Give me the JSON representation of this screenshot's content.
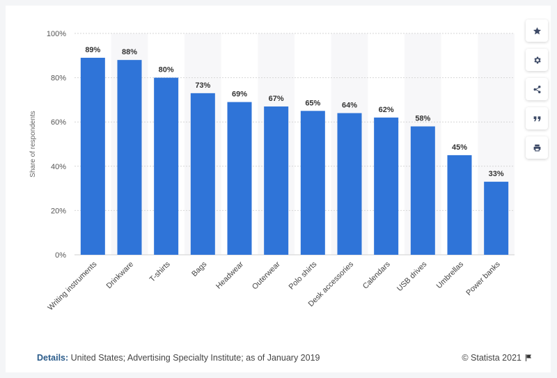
{
  "chart_data": {
    "type": "bar",
    "categories": [
      "Writing instruments",
      "Drinkware",
      "T-shirts",
      "Bags",
      "Headwear",
      "Outerwear",
      "Polo shirts",
      "Desk accessories",
      "Calendars",
      "USB drives",
      "Umbrellas",
      "Power banks"
    ],
    "values": [
      89,
      88,
      80,
      73,
      69,
      67,
      65,
      64,
      62,
      58,
      45,
      33
    ],
    "data_labels": [
      "89%",
      "88%",
      "80%",
      "73%",
      "69%",
      "67%",
      "65%",
      "64%",
      "62%",
      "58%",
      "45%",
      "33%"
    ],
    "ylabel": "Share of respondents",
    "ylim": [
      0,
      100
    ],
    "yticks": [
      "0%",
      "20%",
      "40%",
      "60%",
      "80%",
      "100%"
    ],
    "grid": true,
    "bar_color": "#2f74d8"
  },
  "footer": {
    "details_label": "Details:",
    "details_text": " United States; Advertising Specialty Institute; as of January 2019",
    "credit": "© Statista 2021"
  },
  "sidebar": {
    "icons": [
      "star-icon",
      "gear-icon",
      "share-icon",
      "quote-icon",
      "print-icon"
    ]
  }
}
